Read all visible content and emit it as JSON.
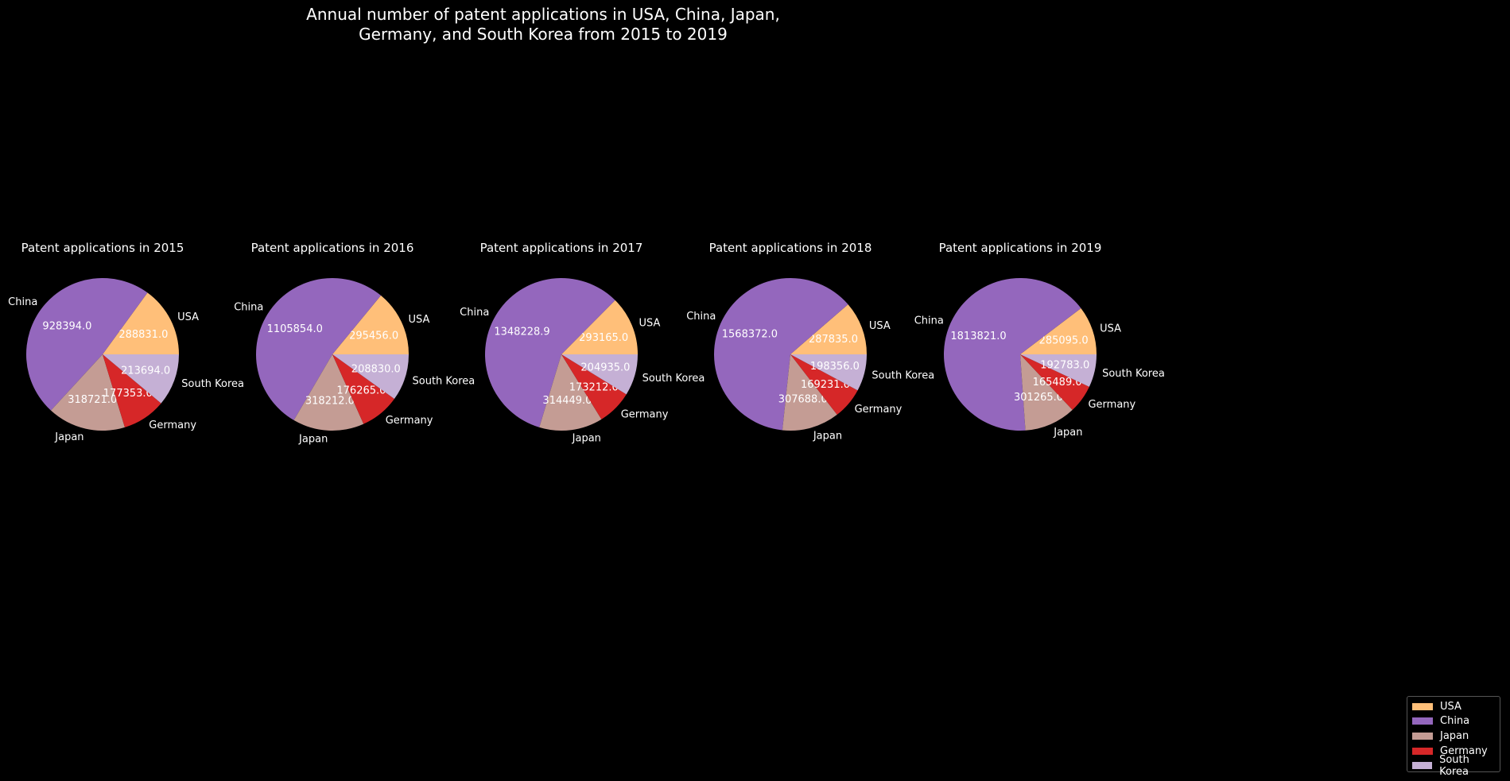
{
  "figure_title": "Annual number of patent applications in USA, China, Japan,\nGermany, and South Korea from 2015 to 2019",
  "colors": {
    "background": "#000000",
    "text": "#ffffff",
    "USA": "#ffbf79",
    "China": "#9467bd",
    "Japan": "#c49c94",
    "Germany": "#d62728",
    "South Korea": "#c5b0d5"
  },
  "legend": {
    "placement": "bottom-right",
    "items": [
      "USA",
      "China",
      "Japan",
      "Germany",
      "South Korea"
    ]
  },
  "chart_data": [
    {
      "type": "pie",
      "title": "Patent applications in 2015",
      "labels": [
        "USA",
        "China",
        "Japan",
        "Germany",
        "South Korea"
      ],
      "values": [
        288831.0,
        928394.0,
        318721.0,
        177353.0,
        213694.0
      ],
      "value_labels": [
        "288831.0",
        "928394.0",
        "318721.0",
        "177353.0",
        "213694.0"
      ]
    },
    {
      "type": "pie",
      "title": "Patent applications in 2016",
      "labels": [
        "USA",
        "China",
        "Japan",
        "Germany",
        "South Korea"
      ],
      "values": [
        295456.0,
        1105854.0,
        318212.0,
        176265.0,
        208830.0
      ],
      "value_labels": [
        "295456.0",
        "1105854.0",
        "318212.0",
        "176265.0",
        "208830.0"
      ]
    },
    {
      "type": "pie",
      "title": "Patent applications in 2017",
      "labels": [
        "USA",
        "China",
        "Japan",
        "Germany",
        "South Korea"
      ],
      "values": [
        293165.0,
        1348228.9,
        314449.0,
        173212.0,
        204935.0
      ],
      "value_labels": [
        "293165.0",
        "1348228.9",
        "314449.0",
        "173212.0",
        "204935.0"
      ]
    },
    {
      "type": "pie",
      "title": "Patent applications in 2018",
      "labels": [
        "USA",
        "China",
        "Japan",
        "Germany",
        "South Korea"
      ],
      "values": [
        287835.0,
        1568372.0,
        307688.0,
        169231.0,
        198356.0
      ],
      "value_labels": [
        "287835.0",
        "1568372.0",
        "307688.0",
        "169231.0",
        "198356.0"
      ]
    },
    {
      "type": "pie",
      "title": "Patent applications in 2019",
      "labels": [
        "USA",
        "China",
        "Japan",
        "Germany",
        "South Korea"
      ],
      "values": [
        285095.0,
        1813821.0,
        301265.0,
        165489.0,
        192783.0
      ],
      "value_labels": [
        "285095.0",
        "1813821.0",
        "301265.0",
        "165489.0",
        "192783.0"
      ]
    }
  ]
}
